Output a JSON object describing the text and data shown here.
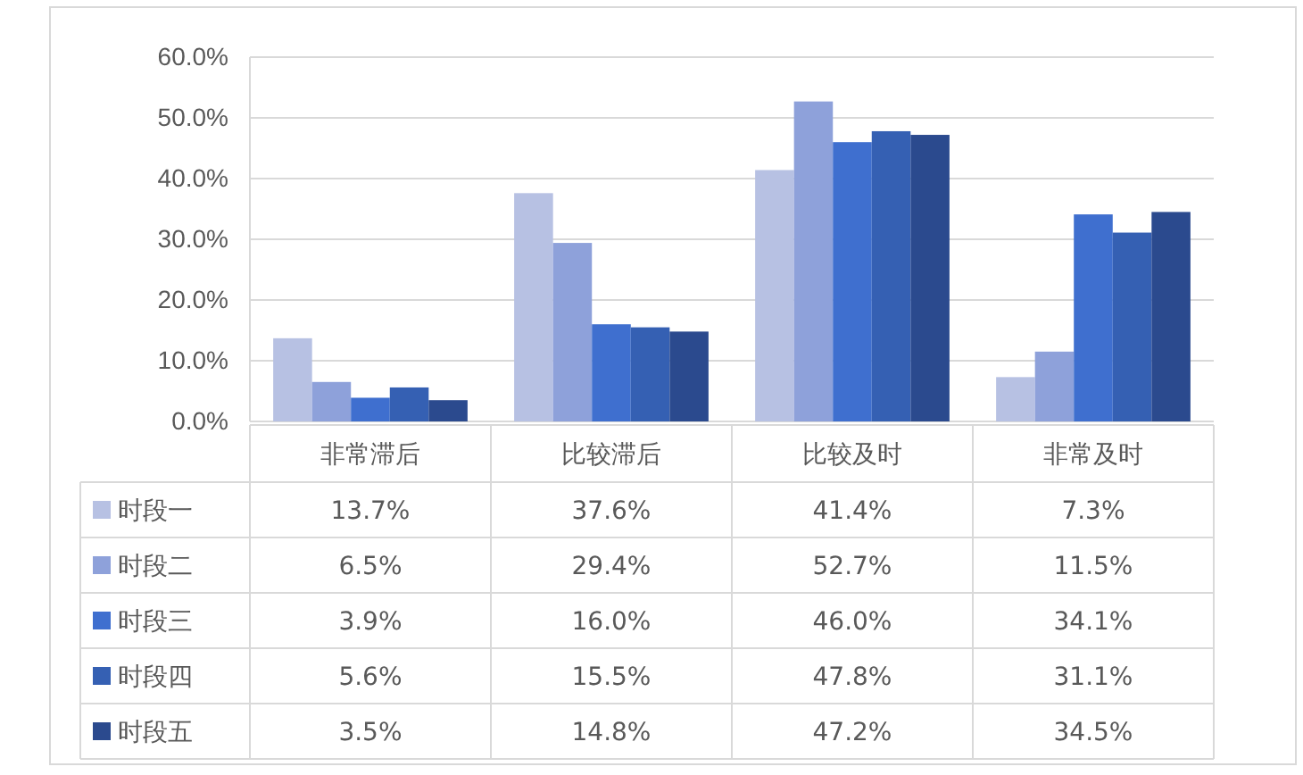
{
  "chart_data": {
    "type": "bar",
    "categories": [
      "非常滞后",
      "比较滞后",
      "比较及时",
      "非常及时"
    ],
    "series": [
      {
        "name": "时段一",
        "color": "#b7c1e3",
        "values": [
          13.7,
          37.6,
          41.4,
          7.3
        ],
        "value_labels": [
          "13.7%",
          "37.6%",
          "41.4%",
          "7.3%"
        ]
      },
      {
        "name": "时段二",
        "color": "#8ea1da",
        "values": [
          6.5,
          29.4,
          52.7,
          11.5
        ],
        "value_labels": [
          "6.5%",
          "29.4%",
          "52.7%",
          "11.5%"
        ]
      },
      {
        "name": "时段三",
        "color": "#3f6fcf",
        "values": [
          3.9,
          16.0,
          46.0,
          34.1
        ],
        "value_labels": [
          "3.9%",
          "16.0%",
          "46.0%",
          "34.1%"
        ]
      },
      {
        "name": "时段四",
        "color": "#3560b3",
        "values": [
          5.6,
          15.5,
          47.8,
          31.1
        ],
        "value_labels": [
          "5.6%",
          "15.5%",
          "47.8%",
          "31.1%"
        ]
      },
      {
        "name": "时段五",
        "color": "#2b4a8e",
        "values": [
          3.5,
          14.8,
          47.2,
          34.5
        ],
        "value_labels": [
          "3.5%",
          "14.8%",
          "47.2%",
          "34.5%"
        ]
      }
    ],
    "ylim": [
      0,
      60
    ],
    "yticks": [
      {
        "value": 0,
        "label": "0.0%"
      },
      {
        "value": 10,
        "label": "10.0%"
      },
      {
        "value": 20,
        "label": "20.0%"
      },
      {
        "value": 30,
        "label": "30.0%"
      },
      {
        "value": 40,
        "label": "40.0%"
      },
      {
        "value": 50,
        "label": "50.0%"
      },
      {
        "value": 60,
        "label": "60.0%"
      }
    ],
    "grid": "y",
    "legend": "bottom"
  }
}
